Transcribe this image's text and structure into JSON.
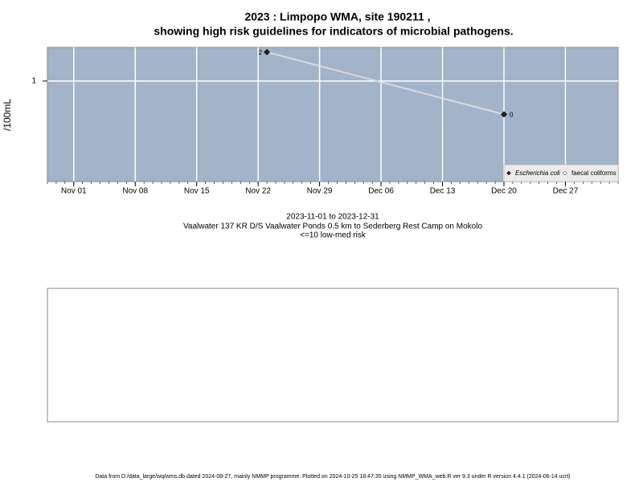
{
  "chart_data": {
    "type": "line",
    "title": "2023 : Limpopo WMA, site 190211 ,",
    "subtitle": "showing high risk guidelines for indicators of microbial pathogens.",
    "y_label": "/100mL",
    "x": [
      "2023-11-23",
      "2023-12-20"
    ],
    "series": [
      {
        "name": "Escherichia coli",
        "color": "#222222",
        "values": [
          2,
          0.45
        ],
        "value_labels": [
          "2",
          "0"
        ]
      },
      {
        "name": "faecal coliforms",
        "color": "#ffffff",
        "values": [
          null,
          null
        ]
      }
    ],
    "log_y": true,
    "ylim": [
      0.09,
      2.24
    ],
    "yticks": [
      1
    ],
    "xlim": [
      "2023-10-29",
      "2024-01-02"
    ],
    "xticks": [
      {
        "value": "2023-11-01",
        "label": "Nov 01"
      },
      {
        "value": "2023-11-08",
        "label": "Nov 08"
      },
      {
        "value": "2023-11-15",
        "label": "Nov 15"
      },
      {
        "value": "2023-11-22",
        "label": "Nov 22"
      },
      {
        "value": "2023-11-29",
        "label": "Nov 29"
      },
      {
        "value": "2023-12-06",
        "label": "Dec 06"
      },
      {
        "value": "2023-12-13",
        "label": "Dec 13"
      },
      {
        "value": "2023-12-20",
        "label": "Dec 20"
      },
      {
        "value": "2023-12-27",
        "label": "Dec 27"
      }
    ],
    "grid": true,
    "legend_position": "bottom-right",
    "caption": [
      "2023-11-01 to 2023-12-31",
      "Vaalwater 137 KR D/S Vaalwater Ponds 0.5 km to Sederberg Rest Camp on Mokolo",
      "<=10 low-med risk"
    ],
    "footer": "Data from D:/data_large/wq/wms.db dated 2024-08-27, mainly NMMP programme. Plotted on 2024-10-25 18:47:35 using NMMP_WMA_web.R ver 9.3 under R version 4.4.1 (2024-06-14 ucrt)"
  }
}
